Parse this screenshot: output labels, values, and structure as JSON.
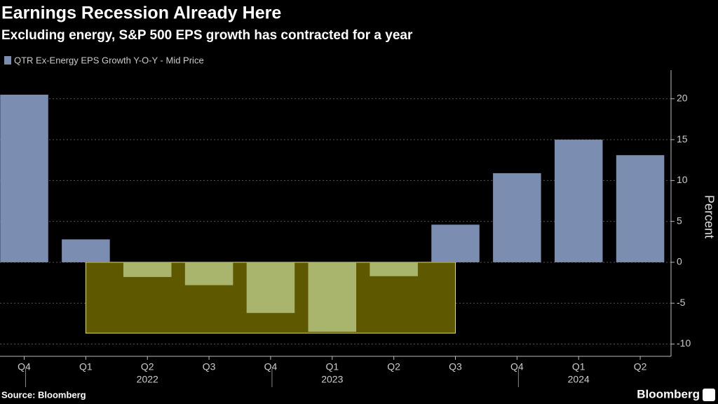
{
  "chart_data": {
    "type": "bar",
    "title": "Earnings Recession Already Here",
    "subtitle": "Excluding energy, S&P 500 EPS growth has contracted for a year",
    "series_name": "QTR Ex-Energy EPS Growth Y-O-Y - Mid Price",
    "categories": [
      "Q4",
      "Q1",
      "Q2",
      "Q3",
      "Q4",
      "Q1",
      "Q2",
      "Q3",
      "Q4",
      "Q1",
      "Q2"
    ],
    "years": [
      null,
      null,
      "2022",
      null,
      null,
      "2023",
      null,
      null,
      null,
      "2024",
      null
    ],
    "values": [
      20.5,
      2.8,
      -1.8,
      -2.8,
      -6.2,
      -8.5,
      -1.7,
      4.6,
      10.9,
      15.0,
      13.1
    ],
    "color": "#7b8db1",
    "negative_color": "#a9b46c",
    "ylabel": "Percent",
    "ylim": [
      -11.5,
      23.5
    ],
    "yticks": [
      -10,
      -5,
      0,
      5,
      10,
      15,
      20
    ],
    "grid": true,
    "source": "Source: Bloomberg",
    "brand": "Bloomberg"
  }
}
